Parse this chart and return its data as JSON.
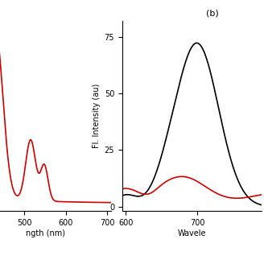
{
  "panel_a": {
    "xlim": [
      390,
      710
    ],
    "xticks": [
      500,
      600,
      700
    ],
    "color": "#cc0000",
    "line_width": 1.2,
    "xlabel_partial": "ngth (nm)"
  },
  "panel_b": {
    "label": "(b)",
    "ylabel": "Fl. Intensity (au)",
    "xlabel_partial": "Wavele",
    "xlim": [
      595,
      790
    ],
    "ylim": [
      -2,
      82
    ],
    "xticks": [
      600,
      700
    ],
    "yticks": [
      0,
      25,
      50,
      75
    ],
    "black_color": "#000000",
    "red_color": "#cc0000",
    "line_width": 1.2
  },
  "background_color": "#ffffff",
  "figure_width": 3.28,
  "figure_height": 3.28,
  "dpi": 100
}
